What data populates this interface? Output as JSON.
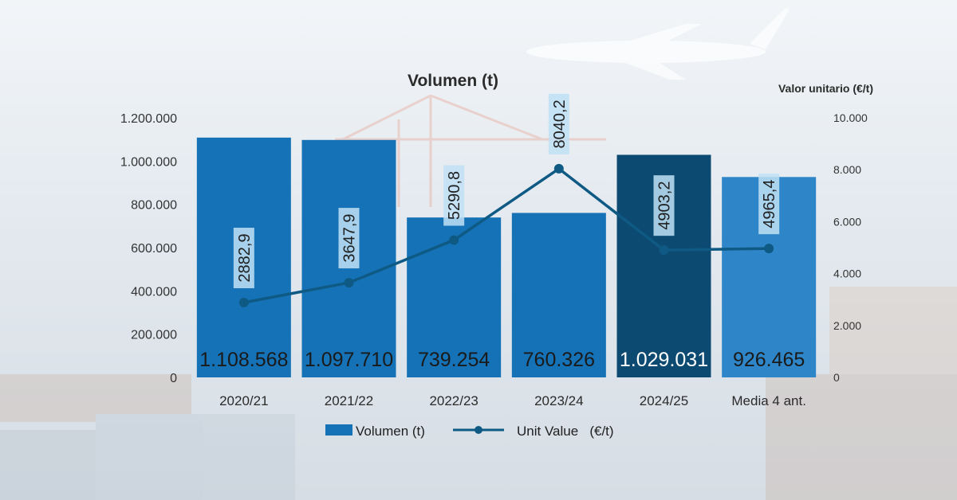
{
  "chart_data": {
    "type": "bar",
    "title": "Volumen (t)",
    "secondary_axis_title": "Valor unitario (€/t)",
    "categories": [
      "2020/21",
      "2021/22",
      "2022/23",
      "2023/24",
      "2024/25",
      "Media 4 ant."
    ],
    "y_ticks": [
      "0",
      "200.000",
      "400.000",
      "600.000",
      "800.000",
      "1.000.000",
      "1.200.000"
    ],
    "y2_ticks": [
      "0",
      "2.000",
      "4.000",
      "6.000",
      "8.000",
      "10.000"
    ],
    "ylim": [
      0,
      1200000
    ],
    "y2lim": [
      0,
      10000
    ],
    "grid": false,
    "legend_position": "bottom",
    "series": [
      {
        "name": "Volumen (t)",
        "type": "bar",
        "axis": "left",
        "values": [
          1108568,
          1097710,
          739254,
          760326,
          1029031,
          926465
        ],
        "labels": [
          "1.108.568",
          "1.097.710",
          "739.254",
          "760.326",
          "1.029.031",
          "926.465"
        ],
        "colors": [
          "#1572b6",
          "#1572b6",
          "#1572b6",
          "#1572b6",
          "#0d4a72",
          "#2e86c8"
        ]
      },
      {
        "name": "Unit Value   (€/t)",
        "type": "line",
        "axis": "right",
        "values": [
          2882.9,
          3647.9,
          5290.8,
          8040.2,
          4903.2,
          4965.4
        ],
        "labels": [
          "2882,9",
          "3647,9",
          "5290,8",
          "8040,2",
          "4903,2",
          "4965,4"
        ],
        "color": "#0e5a84"
      }
    ]
  }
}
